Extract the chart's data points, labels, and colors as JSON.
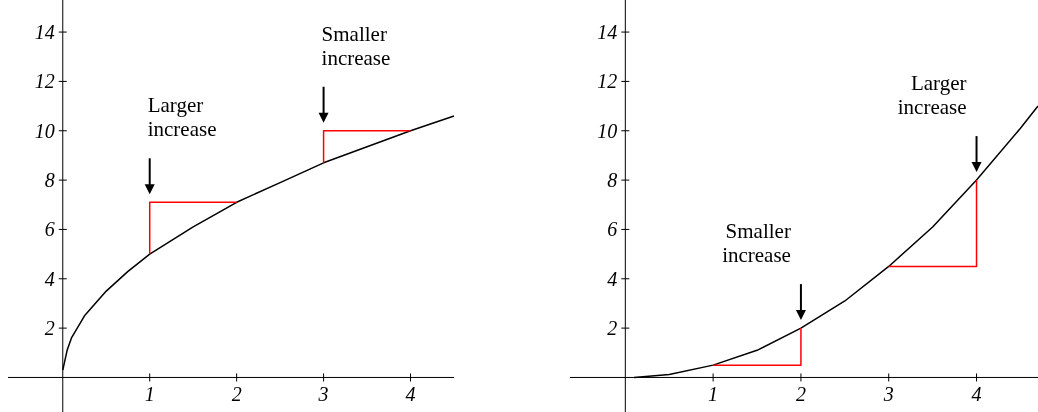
{
  "chart_data": [
    {
      "type": "line",
      "xlim": [
        -0.63,
        4.5
      ],
      "ylim": [
        -1.4,
        15.3
      ],
      "xticks": [
        1,
        2,
        3,
        4
      ],
      "yticks": [
        2,
        4,
        6,
        8,
        10,
        12,
        14
      ],
      "series": [
        {
          "color": "#000000",
          "x": [
            0,
            0.05,
            0.1,
            0.25,
            0.5,
            0.75,
            1,
            1.5,
            2,
            2.5,
            3,
            3.5,
            4,
            4.5
          ],
          "values": [
            0.3,
            1.1,
            1.6,
            2.5,
            3.5,
            4.3,
            5,
            6.1,
            7.1,
            7.9,
            8.7,
            9.35,
            10,
            10.6
          ]
        },
        {
          "color": "#ff0000",
          "x": [
            1,
            1,
            2
          ],
          "values": [
            5,
            7.1,
            7.1
          ]
        },
        {
          "color": "#ff0000",
          "x": [
            3,
            3,
            4
          ],
          "values": [
            8.7,
            10,
            10
          ]
        }
      ],
      "annotations": [
        {
          "text": "Larger increase",
          "x": 1,
          "y": 7.1
        },
        {
          "text": "Smaller increase",
          "x": 3,
          "y": 10
        }
      ]
    },
    {
      "type": "line",
      "xlim": [
        -0.63,
        4.7
      ],
      "ylim": [
        -1.4,
        15.3
      ],
      "xticks": [
        1,
        2,
        3,
        4
      ],
      "yticks": [
        2,
        4,
        6,
        8,
        10,
        12,
        14
      ],
      "series": [
        {
          "color": "#000000",
          "x": [
            0.1,
            0.5,
            1,
            1.5,
            2,
            2.5,
            3,
            3.5,
            4,
            4.5,
            4.7
          ],
          "values": [
            0,
            0.12,
            0.5,
            1.1,
            2,
            3.1,
            4.5,
            6.1,
            8,
            10.1,
            11
          ]
        },
        {
          "color": "#ff0000",
          "x": [
            1,
            2,
            2
          ],
          "values": [
            0.5,
            0.5,
            2
          ]
        },
        {
          "color": "#ff0000",
          "x": [
            3,
            4,
            4
          ],
          "values": [
            4.5,
            4.5,
            8
          ]
        }
      ],
      "annotations": [
        {
          "text": "Smaller increase",
          "x": 2,
          "y": 2
        },
        {
          "text": "Larger increase",
          "x": 4,
          "y": 8
        }
      ]
    }
  ]
}
